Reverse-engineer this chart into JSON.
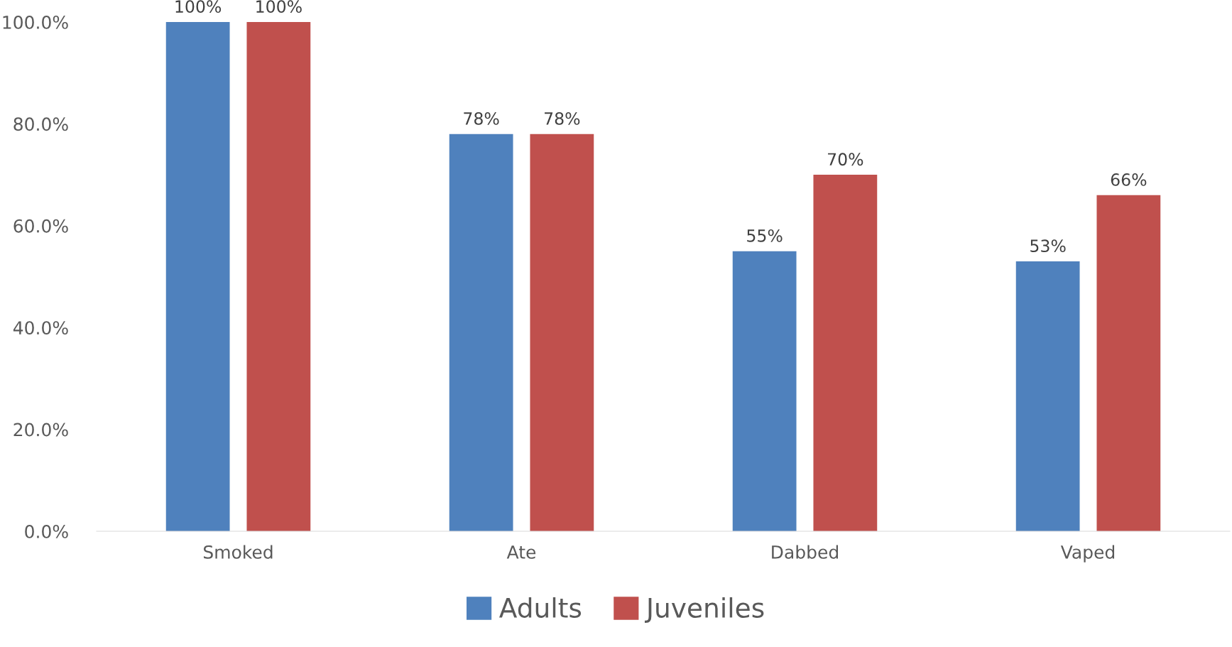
{
  "chart_data": {
    "type": "bar",
    "categories": [
      "Smoked",
      "Ate",
      "Dabbed",
      "Vaped"
    ],
    "series": [
      {
        "name": "Adults",
        "color": "#4f81bd",
        "values": [
          100,
          78,
          55,
          53
        ],
        "value_labels": [
          "100%",
          "78%",
          "55%",
          "53%"
        ]
      },
      {
        "name": "Juveniles",
        "color": "#c0504d",
        "values": [
          100,
          78,
          70,
          66
        ],
        "value_labels": [
          "100%",
          "78%",
          "70%",
          "66%"
        ]
      }
    ],
    "ylim": [
      0,
      100
    ],
    "yticks": [
      {
        "value": 0,
        "label": "0.0%"
      },
      {
        "value": 20,
        "label": "20.0%"
      },
      {
        "value": 40,
        "label": "40.0%"
      },
      {
        "value": 60,
        "label": "60.0%"
      },
      {
        "value": 80,
        "label": "80.0%"
      },
      {
        "value": 100,
        "label": "100.0%"
      }
    ],
    "grid": false,
    "legend": "bottom"
  }
}
